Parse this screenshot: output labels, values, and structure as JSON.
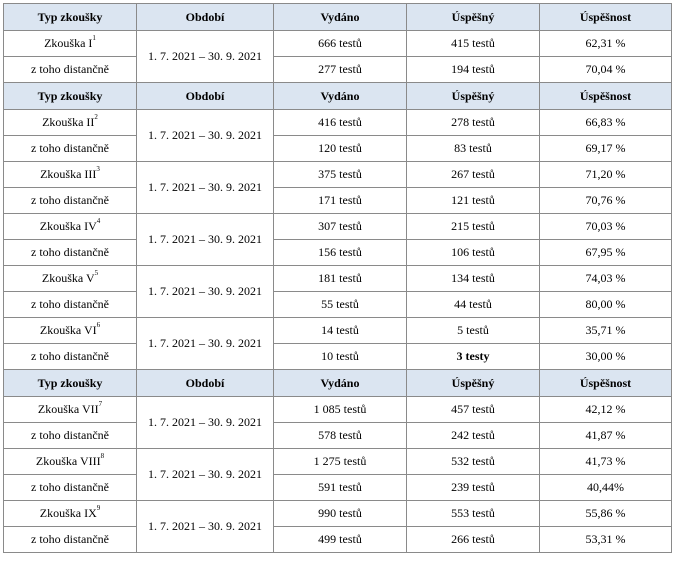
{
  "headers": [
    "Typ zkoušky",
    "Období",
    "Vydáno",
    "Úspěšný",
    "Úspěšnost"
  ],
  "groups": [
    {
      "header": true,
      "exams": [
        {
          "name": "Zkouška I",
          "sup": "1",
          "period": "1. 7. 2021 – 30. 9. 2021",
          "issued": "666 testů",
          "passed": "415 testů",
          "rate": "62,31 %",
          "sub_name": "z toho distančně",
          "sub_issued": "277 testů",
          "sub_passed": "194 testů",
          "sub_rate": "70,04 %"
        }
      ]
    },
    {
      "header": true,
      "exams": [
        {
          "name": "Zkouška II",
          "sup": "2",
          "period": "1. 7. 2021 – 30. 9. 2021",
          "issued": "416 testů",
          "passed": "278 testů",
          "rate": "66,83 %",
          "sub_name": "z toho distančně",
          "sub_issued": "120 testů",
          "sub_passed": "83 testů",
          "sub_rate": "69,17 %"
        },
        {
          "name": "Zkouška III",
          "sup": "3",
          "period": "1. 7. 2021 – 30. 9. 2021",
          "issued": "375 testů",
          "passed": "267 testů",
          "rate": "71,20 %",
          "sub_name": "z toho distančně",
          "sub_issued": "171 testů",
          "sub_passed": "121 testů",
          "sub_rate": "70,76 %"
        },
        {
          "name": "Zkouška IV",
          "sup": "4",
          "period": "1. 7. 2021 – 30. 9. 2021",
          "issued": "307 testů",
          "passed": "215 testů",
          "rate": "70,03 %",
          "sub_name": "z toho distančně",
          "sub_issued": "156 testů",
          "sub_passed": "106 testů",
          "sub_rate": "67,95 %"
        },
        {
          "name": "Zkouška V",
          "sup": "5",
          "period": "1. 7. 2021 – 30. 9. 2021",
          "issued": "181 testů",
          "passed": "134 testů",
          "rate": "74,03 %",
          "sub_name": "z toho distančně",
          "sub_issued": "55 testů",
          "sub_passed": "44 testů",
          "sub_rate": "80,00 %"
        },
        {
          "name": "Zkouška VI",
          "sup": "6",
          "period": "1. 7. 2021 – 30. 9. 2021",
          "issued": "14 testů",
          "passed": "5 testů",
          "rate": "35,71 %",
          "sub_name": "z toho distančně",
          "sub_issued": "10 testů",
          "sub_passed": "3 testy",
          "sub_rate": "30,00 %",
          "sub_passed_bold": true
        }
      ]
    },
    {
      "header": true,
      "exams": [
        {
          "name": "Zkouška VII",
          "sup": "7",
          "period": "1. 7. 2021 – 30. 9. 2021",
          "issued": "1 085 testů",
          "passed": "457 testů",
          "rate": "42,12 %",
          "sub_name": "z toho distančně",
          "sub_issued": "578 testů",
          "sub_passed": "242 testů",
          "sub_rate": "41,87 %"
        },
        {
          "name": "Zkouška VIII",
          "sup": "8",
          "period": "1. 7. 2021 – 30. 9. 2021",
          "issued": "1 275 testů",
          "passed": "532 testů",
          "rate": "41,73 %",
          "sub_name": "z toho distančně",
          "sub_issued": "591 testů",
          "sub_passed": "239 testů",
          "sub_rate": "40,44%"
        },
        {
          "name": "Zkouška IX",
          "sup": "9",
          "period": "1. 7. 2021 – 30. 9. 2021",
          "issued": "990 testů",
          "passed": "553 testů",
          "rate": "55,86 %",
          "sub_name": "z toho distančně",
          "sub_issued": "499 testů",
          "sub_passed": "266 testů",
          "sub_rate": "53,31 %"
        }
      ]
    }
  ],
  "colors": {
    "header_bg": "#dbe5f1",
    "border": "#8a8a8a"
  }
}
